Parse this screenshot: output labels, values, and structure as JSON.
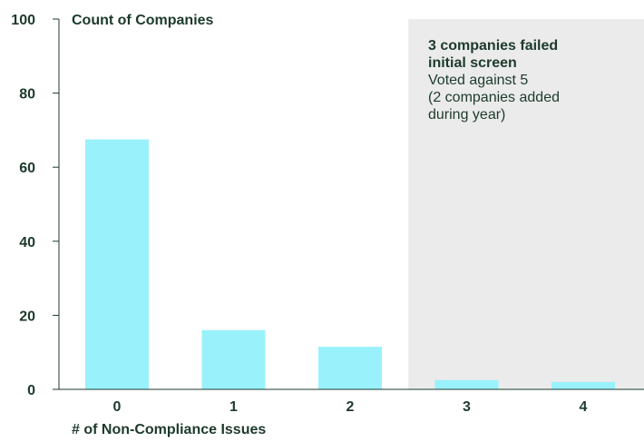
{
  "chart_data": {
    "type": "bar",
    "categories": [
      "0",
      "1",
      "2",
      "3",
      "4"
    ],
    "values": [
      67.5,
      16,
      11.5,
      2.5,
      2
    ],
    "ylabel": "Count of Companies",
    "xlabel": "# of Non-Compliance Issues",
    "ylim": [
      0,
      100
    ],
    "yticks": [
      0,
      20,
      40,
      60,
      80,
      100
    ],
    "grid": false,
    "colors": {
      "bar": "#99f1fc",
      "highlight_region": "#ebebeb",
      "text": "#1d3a2c",
      "axis": "#1d3a2c"
    },
    "highlight_region": {
      "from_category": "3",
      "to_category": "4"
    },
    "annotation": {
      "title_lines": [
        "3 companies failed",
        "initial screen"
      ],
      "body_lines": [
        "Voted against 5",
        "(2 companies added",
        "during year)"
      ]
    }
  }
}
